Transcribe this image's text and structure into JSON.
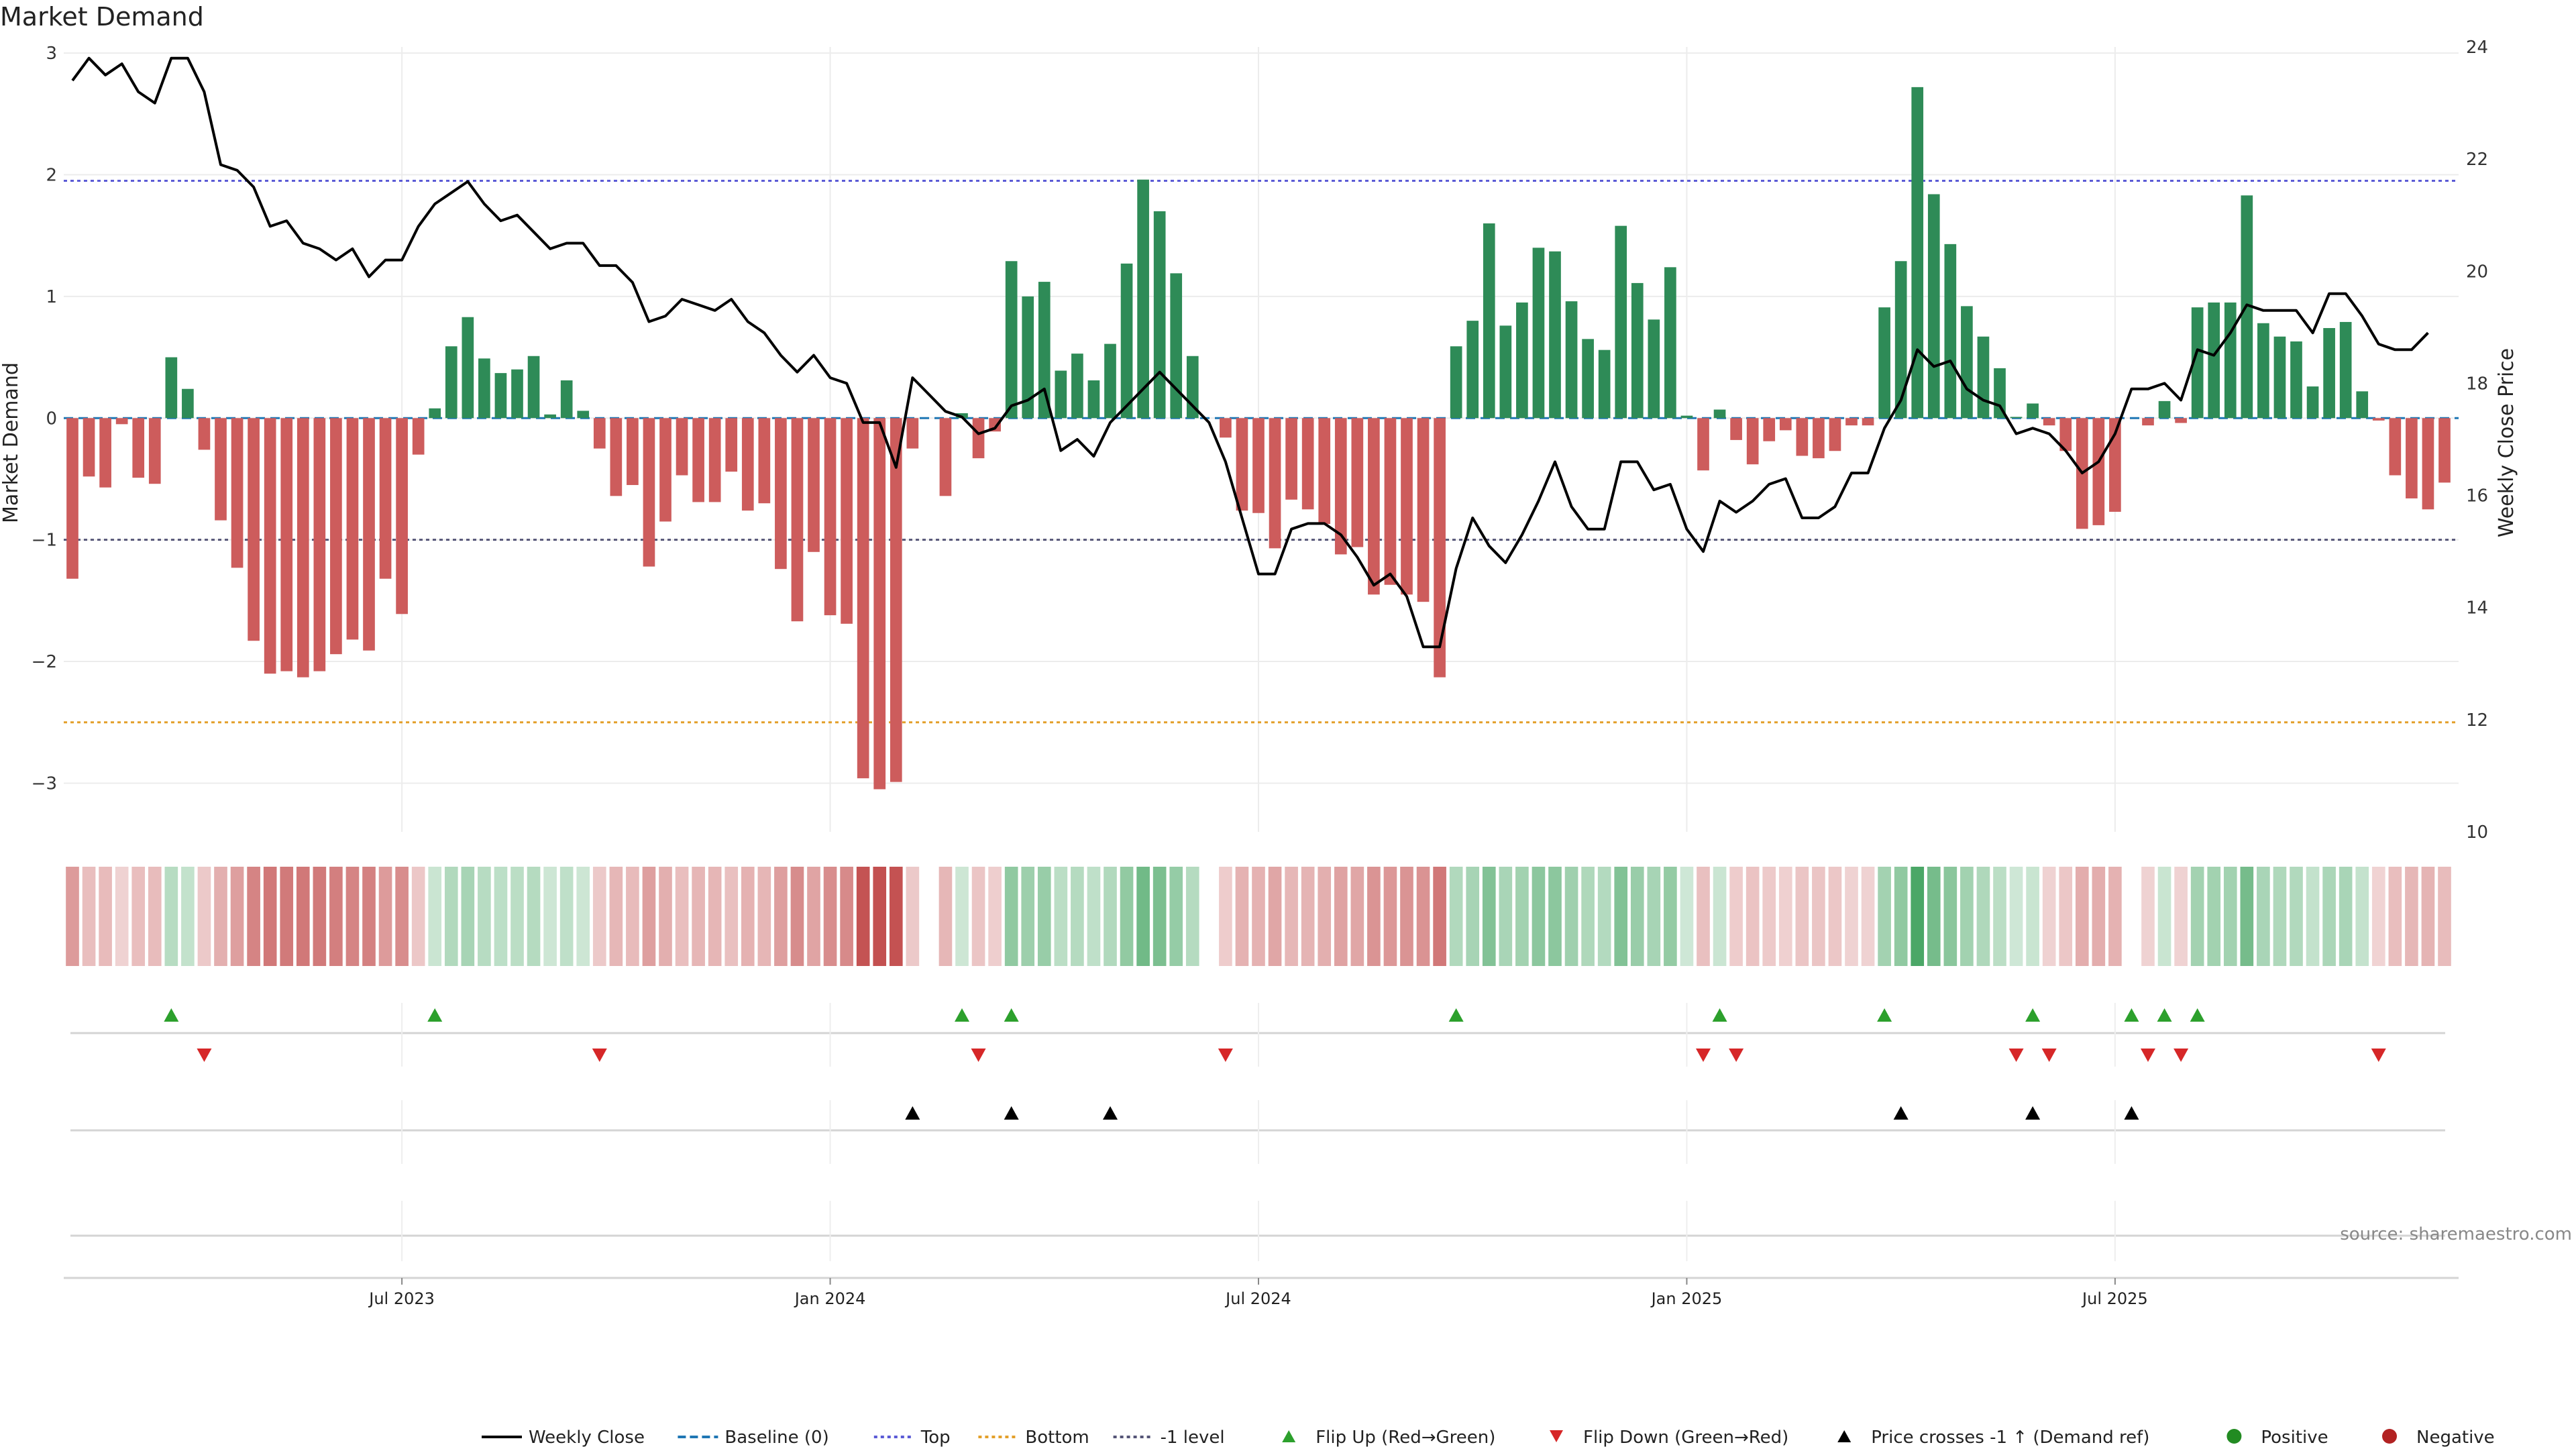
{
  "chart_data": {
    "type": "bar",
    "title": "Market Demand",
    "ylabel": "Market Demand",
    "y2label": "Weekly Close Price",
    "ylim": [
      -3.4,
      3.05
    ],
    "y2lim": [
      10,
      24
    ],
    "yticks": [
      "3",
      "2",
      "1",
      "0",
      "−1",
      "−2",
      "−3"
    ],
    "y2ticks": [
      "24",
      "22",
      "20",
      "18",
      "16",
      "14",
      "12",
      "10"
    ],
    "x_axis": {
      "start": "2023-03-13",
      "interval": "weekly",
      "tick_labels": [
        "Jul 2023",
        "Jan 2024",
        "Jul 2024",
        "Jan 2025",
        "Jul 2025"
      ],
      "tick_weeks": [
        20,
        46,
        72,
        98,
        124
      ]
    },
    "reference_lines": {
      "top": 1.95,
      "bottom": -2.5,
      "minus_one": -1.0,
      "baseline": 0
    },
    "market_demand": [
      -1.32,
      -0.48,
      -0.57,
      -0.05,
      -0.49,
      -0.54,
      0.5,
      0.24,
      -0.26,
      -0.84,
      -1.23,
      -1.83,
      -2.1,
      -2.08,
      -2.13,
      -2.08,
      -1.94,
      -1.82,
      -1.91,
      -1.32,
      -1.61,
      -0.3,
      0.08,
      0.59,
      0.83,
      0.49,
      0.37,
      0.4,
      0.51,
      0.03,
      0.31,
      0.06,
      -0.25,
      -0.64,
      -0.55,
      -1.22,
      -0.85,
      -0.47,
      -0.69,
      -0.69,
      -0.44,
      -0.76,
      -0.7,
      -1.24,
      -1.67,
      -1.1,
      -1.62,
      -1.69,
      -2.96,
      -3.05,
      -2.99,
      -0.25,
      0.0,
      -0.64,
      0.04,
      -0.33,
      -0.11,
      1.29,
      1.0,
      1.12,
      0.39,
      0.53,
      0.31,
      0.61,
      1.27,
      1.96,
      1.7,
      1.19,
      0.51,
      0.0,
      -0.16,
      -0.76,
      -0.78,
      -1.07,
      -0.67,
      -0.75,
      -0.87,
      -1.12,
      -1.06,
      -1.45,
      -1.37,
      -1.45,
      -1.51,
      -2.13,
      0.59,
      0.8,
      1.6,
      0.76,
      0.95,
      1.4,
      1.37,
      0.96,
      0.65,
      0.56,
      1.58,
      1.11,
      0.81,
      1.24,
      0.02,
      -0.43,
      0.07,
      -0.18,
      -0.38,
      -0.19,
      -0.1,
      -0.31,
      -0.33,
      -0.27,
      -0.06,
      -0.06,
      0.91,
      1.29,
      2.72,
      1.84,
      1.43,
      0.92,
      0.67,
      0.41,
      0.01,
      0.12,
      -0.06,
      -0.27,
      -0.91,
      -0.88,
      -0.77,
      0.0,
      -0.06,
      0.14,
      -0.04,
      0.91,
      0.95,
      0.95,
      1.83,
      0.78,
      0.67,
      0.63,
      0.26,
      0.74,
      0.79,
      0.22,
      -0.02,
      -0.47,
      -0.66,
      -0.75,
      -0.53
    ],
    "series": [
      {
        "name": "Weekly Close",
        "values": [
          23.4,
          23.8,
          23.5,
          23.7,
          23.2,
          23.0,
          23.8,
          23.8,
          23.2,
          21.9,
          21.8,
          21.5,
          20.8,
          20.9,
          20.5,
          20.4,
          20.2,
          20.4,
          19.9,
          20.2,
          20.2,
          20.8,
          21.2,
          21.4,
          21.6,
          21.2,
          20.9,
          21.0,
          20.7,
          20.4,
          20.5,
          20.5,
          20.1,
          20.1,
          19.8,
          19.1,
          19.2,
          19.5,
          19.4,
          19.3,
          19.5,
          19.1,
          18.9,
          18.5,
          18.2,
          18.5,
          18.1,
          18.0,
          17.3,
          17.3,
          16.5,
          18.1,
          17.8,
          17.5,
          17.4,
          17.1,
          17.2,
          17.6,
          17.7,
          17.9,
          16.8,
          17.0,
          16.7,
          17.3,
          17.6,
          17.9,
          18.2,
          17.9,
          17.6,
          17.3,
          16.6,
          15.6,
          14.6,
          14.6,
          15.4,
          15.5,
          15.5,
          15.3,
          14.9,
          14.4,
          14.6,
          14.2,
          13.3,
          13.3,
          14.7,
          15.6,
          15.1,
          14.8,
          15.3,
          15.9,
          16.6,
          15.8,
          15.4,
          15.4,
          16.6,
          16.6,
          16.1,
          16.2,
          15.4,
          15.0,
          15.9,
          15.7,
          15.9,
          16.2,
          16.3,
          15.6,
          15.6,
          15.8,
          16.4,
          16.4,
          17.2,
          17.7,
          18.6,
          18.3,
          18.4,
          17.9,
          17.7,
          17.6,
          17.1,
          17.2,
          17.1,
          16.8,
          16.4,
          16.6,
          17.1,
          17.9,
          17.9,
          18.0,
          17.7,
          18.6,
          18.5,
          18.9,
          19.4,
          19.3,
          19.3,
          19.3,
          18.9,
          19.6,
          19.6,
          19.2,
          18.7,
          18.6,
          18.6,
          18.9
        ]
      }
    ],
    "flip_up_weeks": [
      6,
      22,
      54,
      57,
      84,
      100,
      110,
      119,
      125,
      127,
      129
    ],
    "flip_down_weeks": [
      8,
      32,
      55,
      70,
      99,
      101,
      118,
      120,
      126,
      128,
      140
    ],
    "price_cross_weeks": [
      51,
      57,
      63,
      111,
      119,
      125
    ],
    "legend": {
      "position": "bottom",
      "items": [
        {
          "label": "Weekly Close",
          "marker": "solid-line",
          "color": "#000000"
        },
        {
          "label": "Baseline (0)",
          "marker": "dashed-line",
          "color": "#1f77b4"
        },
        {
          "label": "Top",
          "marker": "dotted-line",
          "color": "#5b5bd6"
        },
        {
          "label": "Bottom",
          "marker": "dotted-line",
          "color": "#e3a02b"
        },
        {
          "label": "-1 level",
          "marker": "dotted-line",
          "color": "#555577"
        },
        {
          "label": "Flip Up (Red→Green)",
          "marker": "triangle-up",
          "color": "#2ca02c"
        },
        {
          "label": "Flip Down (Green→Red)",
          "marker": "triangle-down",
          "color": "#d62728"
        },
        {
          "label": "Price crosses -1 ↑ (Demand ref)",
          "marker": "triangle-up",
          "color": "#000000"
        },
        {
          "label": "Positive",
          "marker": "circle",
          "color": "#228b22"
        },
        {
          "label": "Negative",
          "marker": "circle",
          "color": "#b22222"
        }
      ]
    },
    "source": "source: sharemaestro.com",
    "colors": {
      "positive": "#2e8b57",
      "negative": "#cd5c5c",
      "grid": "#ececec"
    }
  }
}
